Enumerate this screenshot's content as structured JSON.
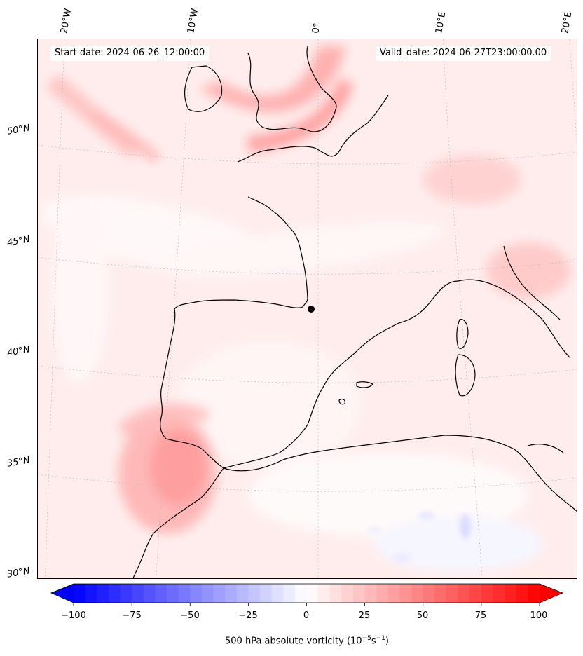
{
  "map": {
    "start_label": "Start date: 2024-06-26_12:00:00",
    "valid_label": "Valid_date: 2024-06-27T23:00:00.00",
    "lon_labels": [
      "20°W",
      "10°W",
      "0°",
      "10°E",
      "20°E"
    ],
    "lat_labels": [
      "50°N",
      "45°N",
      "40°N",
      "35°N",
      "30°N"
    ]
  },
  "colorbar": {
    "ticks": [
      "−100",
      "−75",
      "−50",
      "−25",
      "0",
      "25",
      "50",
      "75",
      "100"
    ],
    "label_text": "500 hPa absolute vorticity (10",
    "label_exp1": "−5",
    "label_mid": "s",
    "label_exp2": "−1",
    "label_end": ")",
    "min_color": "#0000ff",
    "mid_color": "#ffffff",
    "max_color": "#ff0000"
  },
  "chart_data": {
    "type": "heatmap",
    "title": "",
    "variable": "500 hPa absolute vorticity",
    "units": "10^-5 s^-1",
    "colorbar_range": [
      -100,
      100
    ],
    "colorbar_ticks": [
      -100,
      -75,
      -50,
      -25,
      0,
      25,
      50,
      75,
      100
    ],
    "longitude_ticks": [
      "20°W",
      "10°W",
      "0°",
      "10°E",
      "20°E"
    ],
    "latitude_ticks": [
      "50°N",
      "45°N",
      "40°N",
      "35°N",
      "30°N"
    ],
    "start_date": "2024-06-26_12:00:00",
    "valid_date": "2024-06-27T23:00:00.00"
  }
}
